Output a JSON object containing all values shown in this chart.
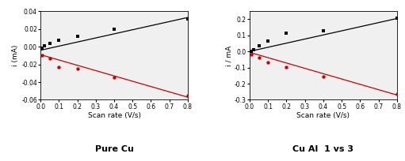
{
  "left": {
    "title": "Pure Cu",
    "ylabel": "i (mA)",
    "xlabel": "Scan rate (V/s)",
    "xlim": [
      0.0,
      0.8
    ],
    "ylim": [
      -0.06,
      0.04
    ],
    "yticks": [
      -0.06,
      -0.04,
      -0.02,
      0.0,
      0.02,
      0.04
    ],
    "xticks": [
      0.0,
      0.1,
      0.2,
      0.3,
      0.4,
      0.5,
      0.6,
      0.7,
      0.8
    ],
    "black_points_x": [
      0.01,
      0.02,
      0.05,
      0.1,
      0.2,
      0.4,
      0.8
    ],
    "black_points_y": [
      -0.002,
      0.001,
      0.004,
      0.007,
      0.012,
      0.02,
      0.031
    ],
    "red_points_x": [
      0.01,
      0.05,
      0.1,
      0.2,
      0.4,
      0.8
    ],
    "red_points_y": [
      -0.01,
      -0.013,
      -0.023,
      -0.025,
      -0.035,
      -0.055
    ],
    "black_line_x": [
      0.0,
      0.8
    ],
    "black_line_y": [
      -0.004,
      0.033
    ],
    "red_line_x": [
      0.0,
      0.8
    ],
    "red_line_y": [
      -0.009,
      -0.057
    ],
    "ytick_labels": [
      "-0.06",
      "-0.04",
      "-0.02",
      "0.00",
      "0.02",
      "0.04"
    ]
  },
  "right": {
    "title": "Cu Al  1 vs 3",
    "ylabel": "i / mA",
    "xlabel": "Scan rate (V/s)",
    "xlim": [
      0.0,
      0.8
    ],
    "ylim": [
      -0.3,
      0.25
    ],
    "yticks": [
      -0.3,
      -0.2,
      -0.1,
      0.0,
      0.1,
      0.2
    ],
    "xticks": [
      0.0,
      0.1,
      0.2,
      0.3,
      0.4,
      0.5,
      0.6,
      0.7,
      0.8
    ],
    "black_points_x": [
      0.01,
      0.02,
      0.05,
      0.1,
      0.2,
      0.4,
      0.8
    ],
    "black_points_y": [
      0.001,
      0.012,
      0.035,
      0.065,
      0.115,
      0.13,
      0.205
    ],
    "red_points_x": [
      0.01,
      0.05,
      0.1,
      0.2,
      0.4,
      0.8
    ],
    "red_points_y": [
      -0.02,
      -0.04,
      -0.065,
      -0.095,
      -0.155,
      -0.265
    ],
    "black_line_x": [
      0.0,
      0.8
    ],
    "black_line_y": [
      0.001,
      0.205
    ],
    "red_line_x": [
      0.0,
      0.8
    ],
    "red_line_y": [
      -0.005,
      -0.27
    ],
    "ytick_labels": [
      "-0.3",
      "-0.2",
      "-0.1",
      "0.0",
      "0.1",
      "0.2"
    ]
  },
  "black_color": "#000000",
  "red_color": "#cc0000",
  "title_fontsize": 8,
  "label_fontsize": 6.5,
  "tick_fontsize": 5.5,
  "marker_size": 10,
  "line_width": 0.9,
  "bg_color": "#f0f0f0"
}
